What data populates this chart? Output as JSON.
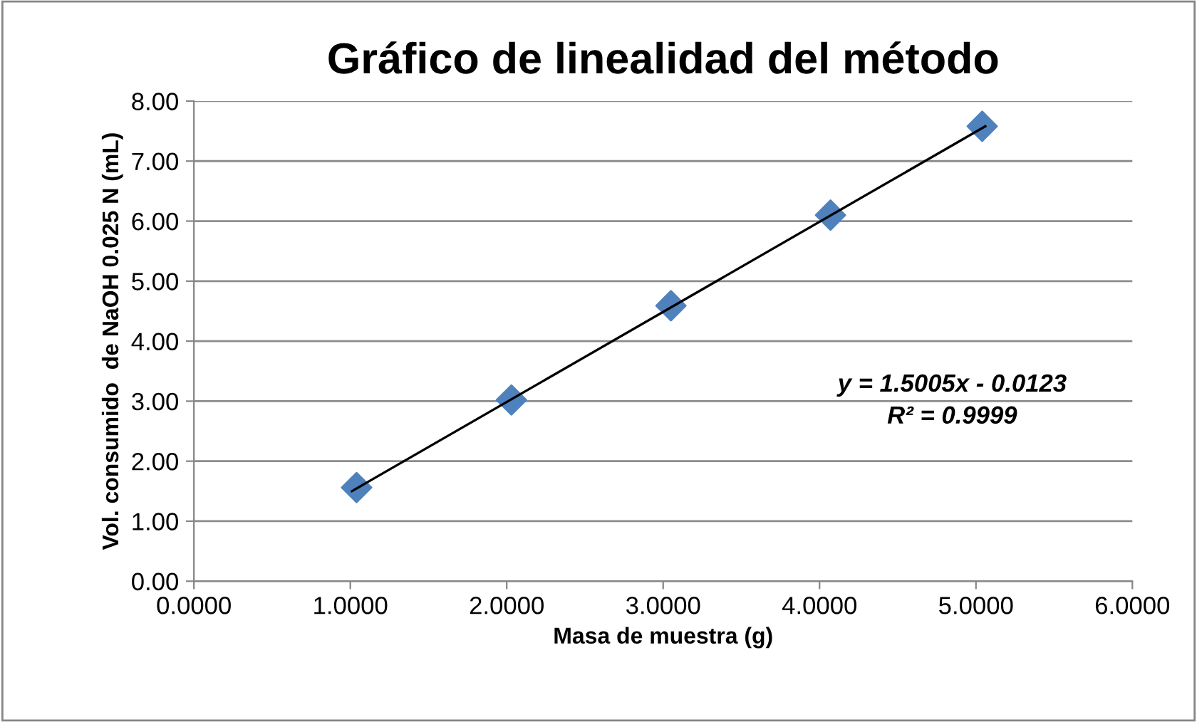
{
  "chart_data": {
    "type": "scatter",
    "title": "Gráfico de linealidad del método",
    "xlabel": "Masa de muestra (g)",
    "ylabel": "Vol. consumido  de NaOH 0.025 N (mL)",
    "series": [
      {
        "color": "#4f81bd",
        "marker": "diamond",
        "x": [
          1.04,
          2.03,
          3.05,
          4.07,
          5.04
        ],
        "values": [
          1.56,
          3.02,
          4.59,
          6.1,
          7.58
        ]
      },
      {
        "type": "line",
        "color": "#000000",
        "marker": "none",
        "x": [
          1.01,
          5.06
        ],
        "values": [
          1.5,
          7.58
        ]
      }
    ],
    "annotations": [
      "y = 1.5005x - 0.0123\nR² = 0.9999"
    ],
    "xlim": [
      0,
      6
    ],
    "xticks": [
      {
        "value": 0,
        "label": "0.0000"
      },
      {
        "value": 1,
        "label": "1.0000"
      },
      {
        "value": 2,
        "label": "2.0000"
      },
      {
        "value": 3,
        "label": "3.0000"
      },
      {
        "value": 4,
        "label": "4.0000"
      },
      {
        "value": 5,
        "label": "5.0000"
      },
      {
        "value": 6,
        "label": "6.0000"
      }
    ],
    "ylim": [
      0,
      8
    ],
    "yticks": [
      {
        "value": 0,
        "label": "0.00"
      },
      {
        "value": 1,
        "label": "1.00"
      },
      {
        "value": 2,
        "label": "2.00"
      },
      {
        "value": 3,
        "label": "3.00"
      },
      {
        "value": 4,
        "label": "4.00"
      },
      {
        "value": 5,
        "label": "5.00"
      },
      {
        "value": 6,
        "label": "6.00"
      },
      {
        "value": 7,
        "label": "7.00"
      },
      {
        "value": 8,
        "label": "8.00"
      }
    ],
    "grid": "y",
    "legend": false
  }
}
